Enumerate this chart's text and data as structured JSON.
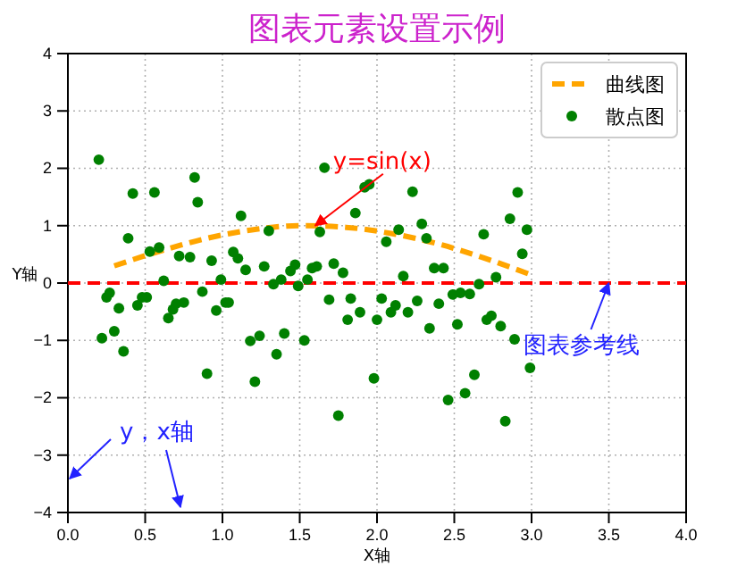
{
  "chart_data": {
    "type": "scatter",
    "title": "图表元素设置示例",
    "xlabel": "X轴",
    "ylabel": "Y轴",
    "xlim": [
      0,
      4
    ],
    "ylim": [
      -4,
      4
    ],
    "xticks": [
      {
        "value": 0,
        "label": "0.0"
      },
      {
        "value": 0.5,
        "label": "0.5"
      },
      {
        "value": 1,
        "label": "1.0"
      },
      {
        "value": 1.5,
        "label": "1.5"
      },
      {
        "value": 2,
        "label": "2.0"
      },
      {
        "value": 2.5,
        "label": "2.5"
      },
      {
        "value": 3,
        "label": "3.0"
      },
      {
        "value": 3.5,
        "label": "3.5"
      },
      {
        "value": 4,
        "label": "4.0"
      }
    ],
    "yticks": [
      {
        "value": -4,
        "label": "−4"
      },
      {
        "value": -3,
        "label": "−3"
      },
      {
        "value": -2,
        "label": "−2"
      },
      {
        "value": -1,
        "label": "−1"
      },
      0,
      1,
      2,
      3,
      4
    ],
    "grid": true,
    "legend": "top right",
    "series": [
      {
        "name": "曲线图",
        "type": "line",
        "color": "#ffa500",
        "line_style": "dashed",
        "x": [
          0.3,
          0.6,
          0.9,
          1.2,
          1.5,
          1.8,
          2.1,
          2.4,
          2.7,
          3.0
        ],
        "values": [
          0.3,
          0.56,
          0.78,
          0.93,
          1.0,
          0.97,
          0.86,
          0.68,
          0.43,
          0.14
        ]
      },
      {
        "name": "散点图",
        "color": "#008000",
        "marker": "circle",
        "x": [
          0.2,
          0.22,
          0.25,
          0.27,
          0.3,
          0.33,
          0.36,
          0.39,
          0.42,
          0.45,
          0.48,
          0.51,
          0.53,
          0.56,
          0.59,
          0.62,
          0.65,
          0.68,
          0.7,
          0.72,
          0.75,
          0.79,
          0.82,
          0.84,
          0.87,
          0.9,
          0.93,
          0.96,
          0.99,
          1.02,
          1.04,
          1.07,
          1.1,
          1.12,
          1.15,
          1.18,
          1.21,
          1.24,
          1.27,
          1.3,
          1.33,
          1.35,
          1.38,
          1.4,
          1.44,
          1.47,
          1.49,
          1.53,
          1.55,
          1.58,
          1.61,
          1.63,
          1.66,
          1.69,
          1.72,
          1.75,
          1.78,
          1.81,
          1.83,
          1.86,
          1.89,
          1.92,
          1.95,
          1.98,
          2.0,
          2.03,
          2.06,
          2.09,
          2.12,
          2.14,
          2.17,
          2.2,
          2.23,
          2.26,
          2.29,
          2.32,
          2.34,
          2.37,
          2.4,
          2.43,
          2.46,
          2.49,
          2.52,
          2.54,
          2.57,
          2.6,
          2.63,
          2.66,
          2.69,
          2.71,
          2.74,
          2.77,
          2.8,
          2.83,
          2.86,
          2.89,
          2.91,
          2.94,
          2.97,
          2.99
        ],
        "values": [
          2.15,
          -0.96,
          -0.25,
          -0.17,
          -0.84,
          -0.44,
          -1.19,
          0.78,
          1.56,
          -0.39,
          -0.25,
          -0.25,
          0.55,
          1.58,
          0.62,
          0.04,
          -0.61,
          -0.46,
          -0.36,
          0.47,
          -0.34,
          0.45,
          1.84,
          1.41,
          -0.15,
          -1.58,
          0.39,
          -0.48,
          0.06,
          -0.34,
          -0.34,
          0.54,
          0.43,
          1.17,
          0.23,
          -1.01,
          -1.72,
          -0.92,
          0.29,
          0.91,
          -0.02,
          -1.24,
          0.06,
          -0.88,
          0.21,
          0.32,
          -0.05,
          -1.0,
          0.06,
          0.26,
          0.29,
          0.89,
          2.01,
          -0.29,
          0.34,
          -2.31,
          0.18,
          -0.64,
          -0.27,
          1.22,
          -0.51,
          1.67,
          1.72,
          -1.66,
          -0.64,
          -0.27,
          0.72,
          -0.51,
          -0.39,
          0.93,
          0.12,
          -0.51,
          1.59,
          -0.31,
          1.03,
          0.78,
          -0.79,
          0.26,
          -0.36,
          0.26,
          -2.04,
          -0.2,
          -0.72,
          -0.17,
          -1.92,
          -0.19,
          -1.6,
          -0.02,
          0.85,
          -0.64,
          -0.57,
          0.1,
          -0.75,
          -2.41,
          1.12,
          -0.98,
          1.58,
          0.51,
          0.93,
          -1.48
        ]
      }
    ],
    "ref_lines": [
      {
        "axis": "y",
        "value": 0,
        "color": "#ff0000",
        "line_style": "dashed"
      }
    ],
    "annotations": [
      {
        "text": "y=sin(x)",
        "x": 1.6,
        "y": 1.0
      },
      {
        "text": "图表参考线",
        "x": 3.5,
        "y": 0
      },
      "y，x轴"
    ]
  }
}
